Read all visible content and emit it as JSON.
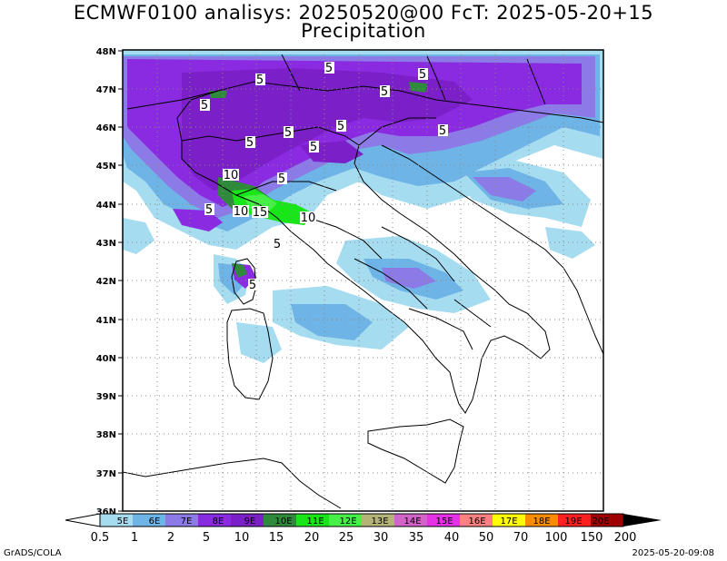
{
  "title": {
    "line1": "ECMWF0100 analisys: 20250520@00 FcT: 2025-05-20+15",
    "line2": "Precipitation"
  },
  "map": {
    "lat_labels": [
      "48N",
      "47N",
      "46N",
      "45N",
      "44N",
      "43N",
      "42N",
      "41N",
      "40N",
      "39N",
      "38N",
      "37N",
      "36N"
    ],
    "contour_labels": [
      {
        "text": "5"
      },
      {
        "text": "5"
      },
      {
        "text": "5"
      },
      {
        "text": "5"
      },
      {
        "text": "5"
      },
      {
        "text": "5"
      },
      {
        "text": "5"
      },
      {
        "text": "5"
      },
      {
        "text": "5"
      },
      {
        "text": "5"
      },
      {
        "text": "5"
      },
      {
        "text": "5"
      },
      {
        "text": "10"
      },
      {
        "text": "10"
      },
      {
        "text": "15"
      },
      {
        "text": "10"
      },
      {
        "text": "5"
      },
      {
        "text": "5"
      }
    ]
  },
  "colorbar": {
    "lon_labels": [
      "5E",
      "6E",
      "7E",
      "8E",
      "9E",
      "10E",
      "11E",
      "12E",
      "13E",
      "14E",
      "15E",
      "16E",
      "17E",
      "18E",
      "19E",
      "20E"
    ],
    "colors": [
      "#a6dcf0",
      "#6eb4e6",
      "#8c7be6",
      "#8a2be2",
      "#7b1fc8",
      "#2f8a3c",
      "#19e619",
      "#46f046",
      "#9bd25a",
      "#b4b478",
      "#d264c8",
      "#e632e6",
      "#ff8080",
      "#ffff00",
      "#ff8c00",
      "#ff2020",
      "#c80000",
      "#a00000"
    ],
    "values": [
      "0.5",
      "1",
      "2",
      "5",
      "10",
      "15",
      "20",
      "25",
      "30",
      "35",
      "40",
      "50",
      "70",
      "100",
      "150",
      "200"
    ]
  },
  "footer": {
    "credit": "GrADS/COLA",
    "timestamp": "2025-05-20-09:08"
  }
}
